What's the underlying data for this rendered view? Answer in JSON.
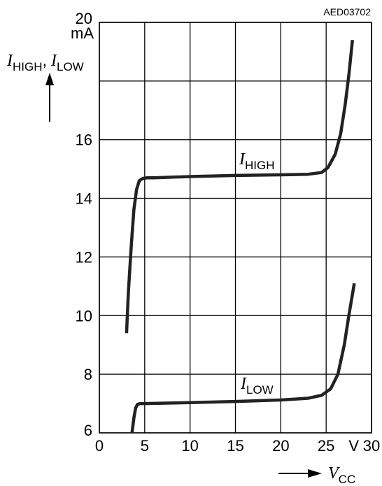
{
  "chart_data": {
    "type": "line",
    "figure_id": "AED03702",
    "x": {
      "min": 0,
      "max": 30,
      "ticks": [
        0,
        5,
        10,
        15,
        20,
        25,
        30
      ],
      "tick_labels": [
        "0",
        "5",
        "10",
        "15",
        "20",
        "25",
        "30"
      ],
      "unit": "V",
      "label_symbol": "V",
      "label_sub": "CC"
    },
    "y": {
      "min": 6,
      "max": 20,
      "ticks": [
        6,
        8,
        10,
        12,
        14,
        16,
        18,
        20
      ],
      "tick_labels": [
        "6",
        "8",
        "10",
        "12",
        "14",
        "16",
        "",
        "20"
      ],
      "unit": "mA",
      "label_parts": [
        {
          "sym": "I",
          "sub": "HIGH",
          "sep": ","
        },
        {
          "sym": "I",
          "sub": "LOW",
          "sep": ""
        }
      ]
    },
    "grid": true,
    "series": [
      {
        "name_symbol": "I",
        "name_sub": "HIGH",
        "x": [
          3.0,
          3.2,
          3.5,
          3.8,
          4.1,
          4.4,
          4.8,
          5.3,
          6,
          10,
          15,
          20,
          23,
          24.5,
          25.2,
          26,
          26.6,
          27.1,
          27.5,
          27.9
        ],
        "y": [
          9.4,
          10.8,
          12.3,
          13.6,
          14.3,
          14.6,
          14.68,
          14.7,
          14.7,
          14.74,
          14.78,
          14.8,
          14.82,
          14.88,
          15.05,
          15.5,
          16.2,
          17.2,
          18.2,
          19.4
        ]
      },
      {
        "name_symbol": "I",
        "name_sub": "LOW",
        "x": [
          3.6,
          3.8,
          4.0,
          4.2,
          4.5,
          5.0,
          10,
          15,
          20,
          23,
          24.5,
          25.5,
          26.3,
          27.0,
          27.5,
          28.1
        ],
        "y": [
          6.0,
          6.5,
          6.85,
          6.97,
          7.0,
          7.0,
          7.03,
          7.07,
          7.12,
          7.18,
          7.28,
          7.5,
          8.0,
          9.0,
          10.0,
          11.1
        ]
      }
    ]
  }
}
